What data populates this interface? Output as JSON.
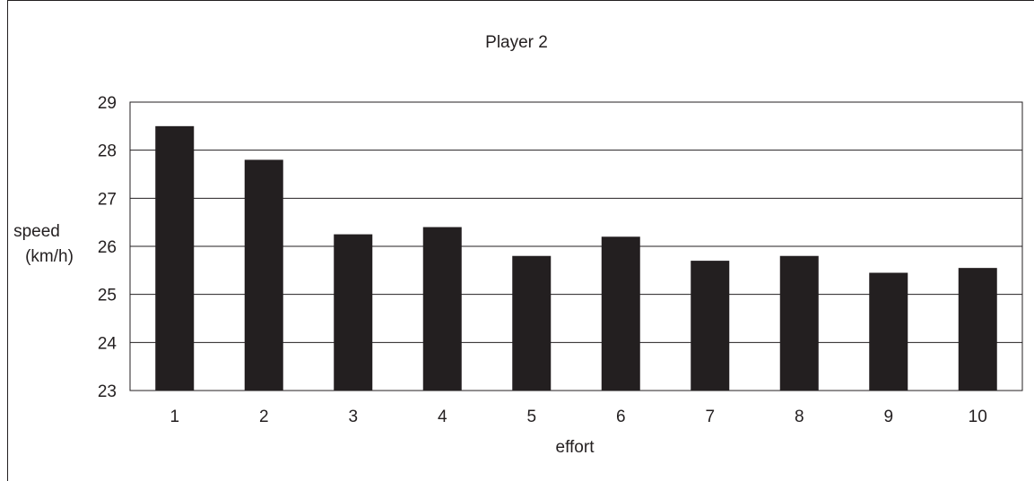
{
  "chart_data": {
    "type": "bar",
    "title": "Player 2",
    "xlabel": "effort",
    "ylabel_lines": [
      "speed",
      "(km/h)"
    ],
    "categories": [
      "1",
      "2",
      "3",
      "4",
      "5",
      "6",
      "7",
      "8",
      "9",
      "10"
    ],
    "values": [
      28.5,
      27.8,
      26.25,
      26.4,
      25.8,
      26.2,
      25.7,
      25.8,
      25.45,
      25.55
    ],
    "ylim": [
      23,
      29
    ],
    "yticks": [
      "23",
      "24",
      "25",
      "26",
      "27",
      "28",
      "29"
    ],
    "grid": true,
    "legend": "none",
    "colors": {
      "bar": "#231f20",
      "grid": "#231f20",
      "text": "#231f20"
    }
  }
}
